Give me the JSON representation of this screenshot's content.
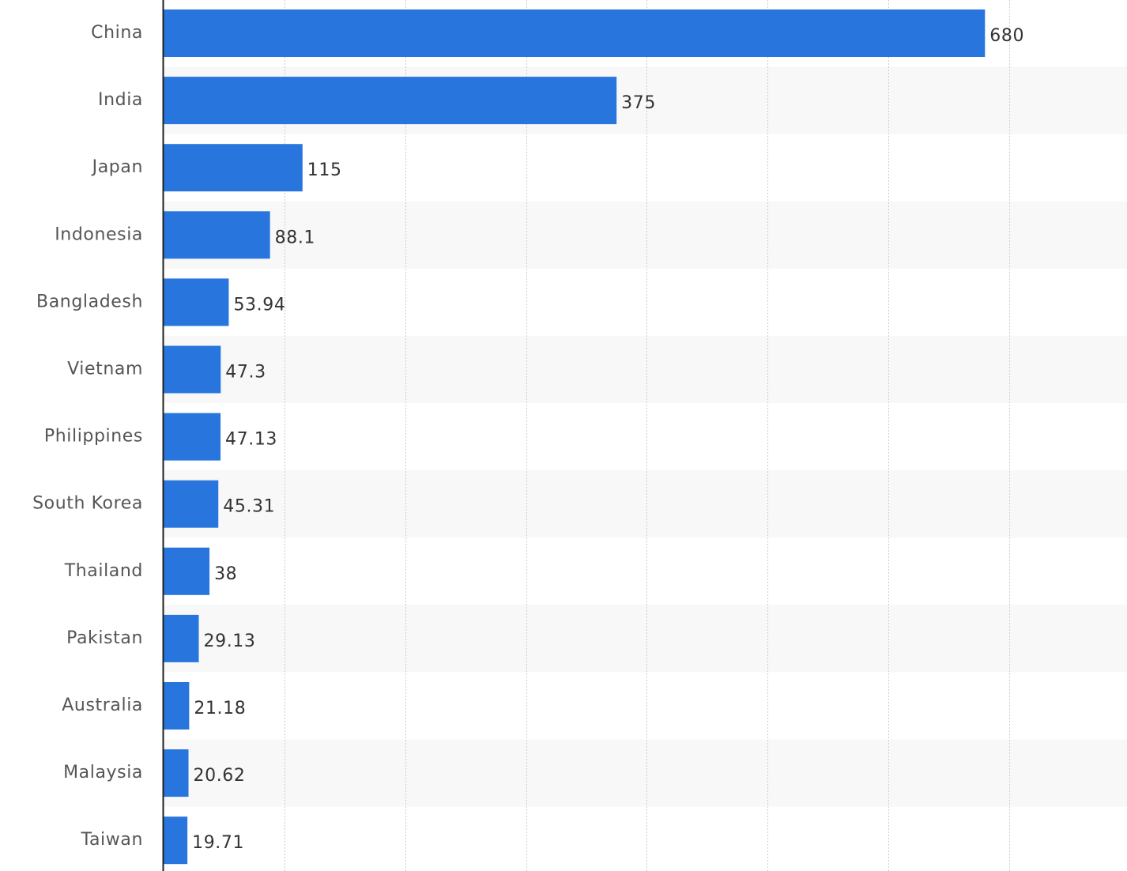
{
  "chart_data": {
    "type": "bar",
    "orientation": "horizontal",
    "categories": [
      "China",
      "India",
      "Japan",
      "Indonesia",
      "Bangladesh",
      "Vietnam",
      "Philippines",
      "South Korea",
      "Thailand",
      "Pakistan",
      "Australia",
      "Malaysia",
      "Taiwan"
    ],
    "values": [
      680,
      375,
      115,
      88.1,
      53.94,
      47.3,
      47.13,
      45.31,
      38,
      29.13,
      21.18,
      20.62,
      19.71
    ],
    "value_labels": [
      "680",
      "375",
      "115",
      "88.1",
      "53.94",
      "47.3",
      "47.13",
      "45.31",
      "38",
      "29.13",
      "21.18",
      "20.62",
      "19.71"
    ],
    "xlim": [
      0,
      800
    ],
    "grid": true,
    "grid_style": "dotted vertical",
    "alternating_row_bands": true,
    "colors": {
      "bar": "#2876dd",
      "band": "#f8f8f8",
      "grid": "#cccccc",
      "axis": "#222222"
    }
  }
}
